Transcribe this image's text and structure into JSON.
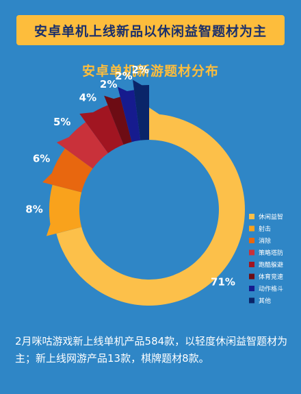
{
  "banner": {
    "text": "安卓单机上线新品以休闲益智题材为主"
  },
  "chart_data": {
    "type": "pie",
    "title": "安卓单机新游题材分布",
    "categories": [
      "休闲益智",
      "射击",
      "消除",
      "策略塔防",
      "跑酷躲避",
      "体育竞速",
      "动作格斗",
      "其他"
    ],
    "values": [
      71,
      8,
      6,
      5,
      4,
      2,
      2,
      2
    ],
    "data_labels": [
      "71%",
      "8%",
      "6%",
      "5%",
      "4%",
      "2%",
      "2%",
      "2%"
    ],
    "colors": [
      "#fcc04a",
      "#f9a21c",
      "#e8670f",
      "#c9313a",
      "#a11521",
      "#6d0c14",
      "#161b8e",
      "#0a2569"
    ],
    "legend": "right",
    "donut": true
  },
  "caption": {
    "text": "2月咪咕游戏新上线单机产品584款，以轻度休闲益智题材为主；新上线网游产品13款，棋牌题材8款。"
  }
}
